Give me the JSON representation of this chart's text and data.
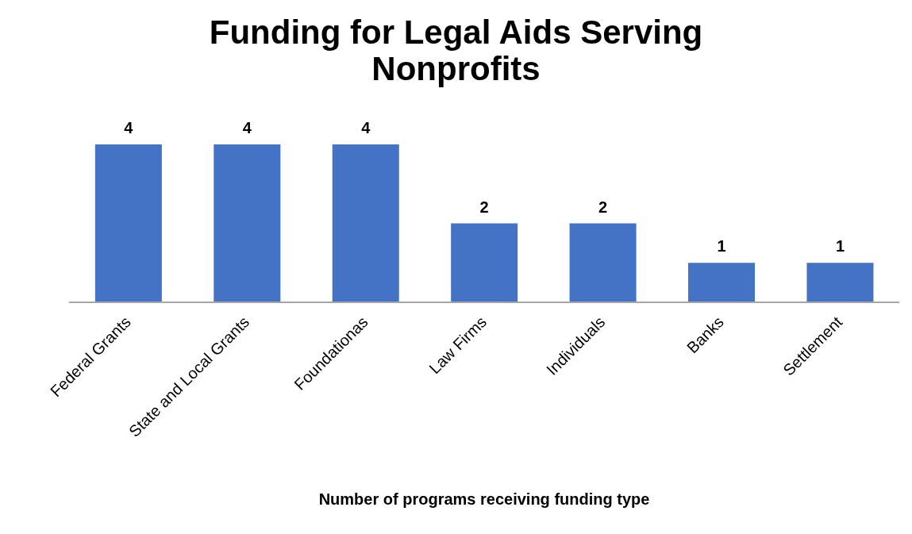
{
  "chart_data": {
    "type": "bar",
    "title": "Funding for Legal Aids Serving Nonprofits",
    "xlabel": "Number of programs receiving funding type",
    "categories": [
      "Federal Grants",
      "State and Local Grants",
      "Foundationas",
      "Law Firms",
      "Individuals",
      "Banks",
      "Settlement"
    ],
    "values": [
      4,
      4,
      4,
      2,
      2,
      1,
      1
    ],
    "color": "#4472c4",
    "data_labels": true
  }
}
